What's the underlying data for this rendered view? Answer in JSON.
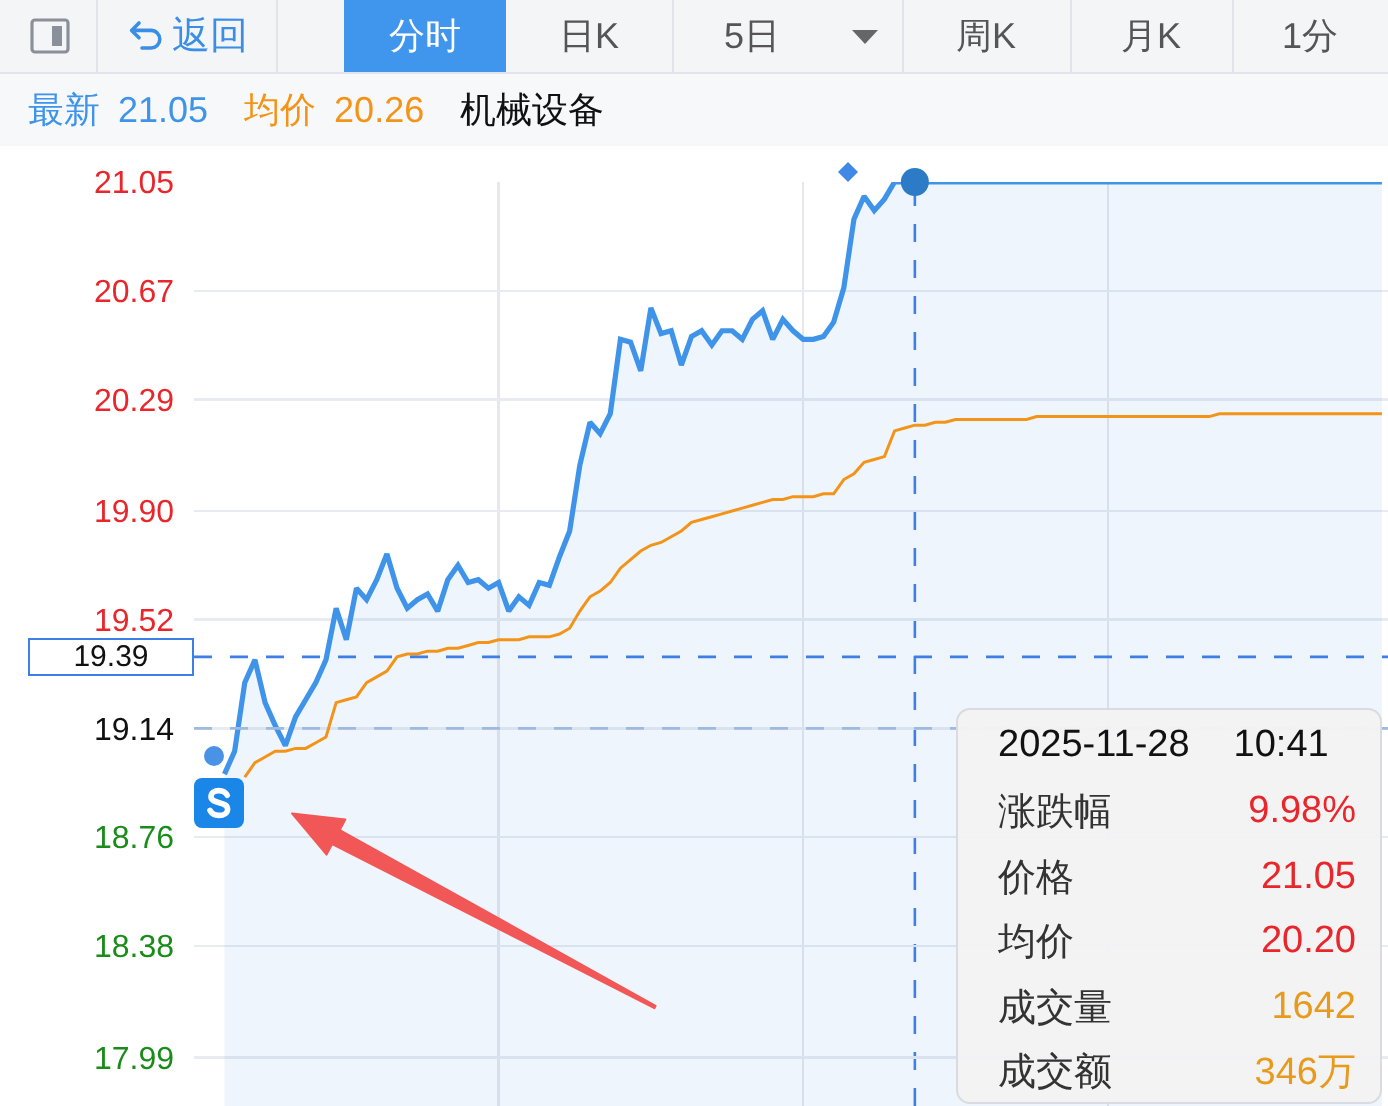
{
  "chart_data": {
    "type": "line",
    "categories": [
      null,
      null,
      null,
      null,
      null,
      null,
      null,
      null,
      null,
      null,
      null,
      null,
      null,
      null,
      null,
      null,
      null,
      null,
      null,
      null,
      null,
      null,
      null,
      null,
      null,
      null,
      null,
      null,
      null,
      null,
      null,
      null,
      null,
      null,
      null,
      null,
      null,
      null,
      null,
      null,
      null,
      null,
      null,
      null,
      null,
      null,
      null,
      null,
      null,
      null,
      null,
      null,
      null,
      null,
      null,
      null,
      null,
      null,
      null,
      null,
      null,
      null,
      null,
      null,
      null,
      null,
      null,
      null,
      null,
      null,
      null,
      null,
      null,
      null,
      null,
      null,
      null,
      null,
      null,
      null,
      null,
      null,
      null,
      null,
      null,
      null,
      null,
      null,
      null,
      null,
      null,
      null,
      null,
      null,
      null,
      null,
      null,
      null,
      null,
      null,
      null,
      null,
      null,
      null,
      null,
      null,
      null,
      null,
      null,
      null,
      null,
      null,
      null,
      null,
      null,
      null,
      null,
      null
    ],
    "series": [
      {
        "type": "area",
        "name": "最新",
        "color": "#3f94ea",
        "values": [
          null,
          null,
          null,
          18.98,
          19.06,
          19.3,
          19.38,
          19.23,
          19.15,
          19.08,
          19.18,
          19.24,
          19.3,
          19.38,
          19.56,
          19.45,
          19.63,
          19.59,
          19.66,
          19.75,
          19.63,
          19.56,
          19.59,
          19.61,
          19.55,
          19.66,
          19.71,
          19.65,
          19.66,
          19.63,
          19.65,
          19.55,
          19.6,
          19.57,
          19.65,
          19.64,
          19.74,
          19.83,
          20.06,
          20.21,
          20.17,
          20.24,
          20.5,
          20.49,
          20.39,
          20.61,
          20.52,
          20.53,
          20.41,
          20.51,
          20.53,
          20.48,
          20.53,
          20.53,
          20.5,
          20.57,
          20.6,
          20.5,
          20.57,
          20.53,
          20.5,
          20.5,
          20.51,
          20.56,
          20.68,
          20.92,
          21.0,
          20.95,
          20.99,
          21.05,
          21.05,
          21.05,
          21.05,
          21.05,
          21.05,
          21.05,
          21.05,
          21.05,
          21.05,
          21.05,
          21.05,
          21.05,
          21.05,
          21.05,
          21.05,
          21.05,
          21.05,
          21.05,
          21.05,
          21.05,
          21.05,
          21.05,
          21.05,
          21.05,
          21.05,
          21.05,
          21.05,
          21.05,
          21.05,
          21.05,
          21.05,
          21.05,
          21.05,
          21.05,
          21.05,
          21.05,
          21.05,
          21.05,
          21.05,
          21.05,
          21.05,
          21.05,
          21.05,
          21.05,
          21.05,
          21.05,
          21.05,
          21.05
        ]
      },
      {
        "name": "均价",
        "color": "#f39418",
        "values": [
          null,
          null,
          null,
          null,
          null,
          18.97,
          19.02,
          19.04,
          19.06,
          19.06,
          19.07,
          19.07,
          19.09,
          19.11,
          19.23,
          19.24,
          19.25,
          19.3,
          19.32,
          19.34,
          19.39,
          19.4,
          19.4,
          19.41,
          19.41,
          19.42,
          19.42,
          19.43,
          19.44,
          19.44,
          19.45,
          19.45,
          19.45,
          19.46,
          19.46,
          19.46,
          19.47,
          19.49,
          19.55,
          19.6,
          19.62,
          19.65,
          19.7,
          19.73,
          19.76,
          19.78,
          19.79,
          19.81,
          19.83,
          19.86,
          19.87,
          19.88,
          19.89,
          19.9,
          19.91,
          19.92,
          19.93,
          19.94,
          19.94,
          19.95,
          19.95,
          19.95,
          19.96,
          19.96,
          20.01,
          20.03,
          20.07,
          20.08,
          20.09,
          20.18,
          20.19,
          20.2,
          20.2,
          20.21,
          20.21,
          20.22,
          20.22,
          20.22,
          20.22,
          20.22,
          20.22,
          20.22,
          20.22,
          20.23,
          20.23,
          20.23,
          20.23,
          20.23,
          20.23,
          20.23,
          20.23,
          20.23,
          20.23,
          20.23,
          20.23,
          20.23,
          20.23,
          20.23,
          20.23,
          20.23,
          20.23,
          20.24,
          20.24,
          20.24,
          20.24,
          20.24,
          20.24,
          20.24,
          20.24,
          20.24,
          20.24,
          20.24,
          20.24,
          20.24,
          20.24,
          20.24,
          20.24,
          20.24
        ]
      },
      {
        "type": "scatter",
        "color": "#2c7bc6",
        "marker": "circle",
        "values": [
          null,
          null,
          null,
          null,
          null,
          null,
          null,
          null,
          null,
          null,
          null,
          null,
          null,
          null,
          null,
          null,
          null,
          null,
          null,
          null,
          null,
          null,
          null,
          null,
          null,
          null,
          null,
          null,
          null,
          null,
          null,
          null,
          null,
          null,
          null,
          null,
          null,
          null,
          null,
          null,
          null,
          null,
          null,
          null,
          null,
          null,
          null,
          null,
          null,
          null,
          null,
          null,
          null,
          null,
          null,
          null,
          null,
          null,
          null,
          null,
          null,
          null,
          null,
          null,
          null,
          null,
          null,
          null,
          null,
          null,
          null,
          21.05,
          null,
          null,
          null,
          null,
          null,
          null,
          null,
          null,
          null,
          null,
          null,
          null,
          null,
          null,
          null,
          null,
          null,
          null,
          null,
          null,
          null,
          null,
          null,
          null,
          null,
          null,
          null,
          null,
          null,
          null,
          null,
          null,
          null,
          null,
          null,
          null,
          null,
          null,
          null,
          null,
          null,
          null,
          null,
          null,
          null,
          null
        ]
      }
    ],
    "ylim": [
      17.82,
      21.05
    ],
    "yticks": [
      21.05,
      20.67,
      20.29,
      {
        "value": 19.9,
        "label": "19.90"
      },
      19.52,
      19.14,
      18.76,
      18.38,
      17.99
    ],
    "grid": true,
    "legend": "top left",
    "tick_labels": "y",
    "ref_lines": [
      {
        "axis": "y",
        "value": 19.14,
        "color": "#9fb9e0",
        "line_style": "dashed"
      },
      {
        "axis": "y",
        "value": 19.39,
        "label": "19.39",
        "color": "#3d7fe6",
        "line_style": "dashed"
      }
    ],
    "annotations": [
      "返回",
      "分时",
      "日K",
      "5日",
      "周K",
      "月K",
      "1分",
      "21.05",
      "20.26",
      "机械设备",
      "2025-11-28",
      "10:41",
      "涨跌幅",
      "9.98%",
      "价格",
      "21.05",
      "均价",
      "20.20",
      "成交量",
      "1642",
      "成交额",
      "346万"
    ]
  }
}
